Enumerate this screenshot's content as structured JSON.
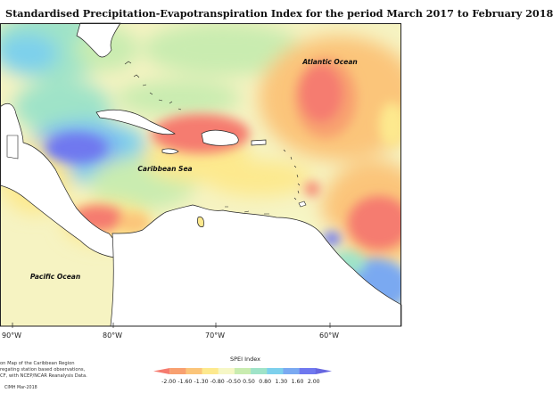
{
  "title": "Standardised Precipitation-Evapotranspiration Index for the period March 2017 to February 2018",
  "map_labels": {
    "atlantic": "Atlantic Ocean",
    "caribbean": "Caribbean Sea",
    "pacific": "Pacific Ocean"
  },
  "longitudes": [
    "90°W",
    "80°W",
    "70°W",
    "60°W"
  ],
  "notes": [
    "on Map of the Caribbean Region",
    "regating station based observations,",
    "CF, with NCEP/NCAR Reanalysis Data."
  ],
  "copyright": "CIMH Mar-2018",
  "legend": {
    "title": "SPEI Index",
    "ticks": [
      "-2.00",
      "-1.60",
      "-1.30",
      "-0.80",
      "-0.50",
      "0.50",
      "0.80",
      "1.30",
      "1.60",
      "2.00"
    ],
    "colors": [
      "#f57b6f",
      "#f8a070",
      "#fbc57a",
      "#fde98e",
      "#f6f7c6",
      "#c9ecb0",
      "#9fe3c8",
      "#7dd0ec",
      "#7aa9f1",
      "#6f78ef",
      "#6666e0"
    ]
  }
}
